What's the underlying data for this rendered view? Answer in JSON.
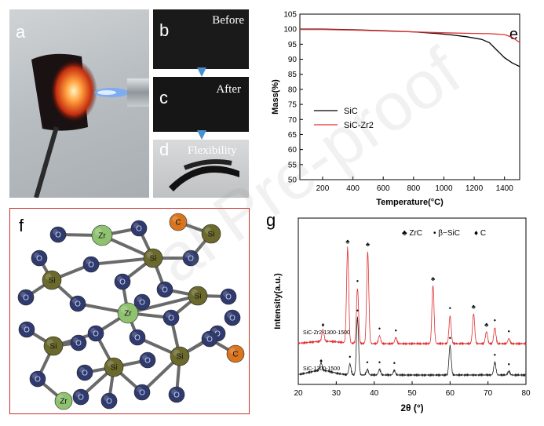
{
  "panels": {
    "a": {
      "label": "a"
    },
    "b": {
      "label": "b",
      "caption": "Before"
    },
    "c": {
      "label": "c",
      "caption": "After"
    },
    "d": {
      "label": "d",
      "caption": "Flexibility"
    },
    "e": {
      "label": "e"
    },
    "f": {
      "label": "f"
    },
    "g": {
      "label": "g"
    }
  },
  "molecule": {
    "atoms": {
      "O": "O",
      "Si": "Si",
      "Zr": "Zr",
      "C": "C"
    },
    "colors": {
      "O": "#2f3a6e",
      "Si": "#6b6a2c",
      "Zr": "#8fc26f",
      "C": "#d9741f"
    }
  },
  "watermark": "al Pre-proof",
  "chart_data": [
    {
      "type": "line",
      "panel": "e",
      "xlabel": "Temperature(°C)",
      "ylabel": "Mass(%)",
      "xlim": [
        50,
        1500
      ],
      "ylim": [
        50,
        105
      ],
      "xticks": [
        200,
        400,
        600,
        800,
        1000,
        1200,
        1400
      ],
      "yticks": [
        50,
        55,
        60,
        65,
        70,
        75,
        80,
        85,
        90,
        95,
        100,
        105
      ],
      "legend_position": "bottom-left",
      "series": [
        {
          "name": "SiC",
          "color": "#000000",
          "x": [
            50,
            200,
            400,
            600,
            800,
            950,
            1050,
            1150,
            1250,
            1300,
            1350,
            1400,
            1450,
            1500
          ],
          "y": [
            100,
            100,
            99.8,
            99.5,
            99.1,
            98.6,
            98.1,
            97.5,
            96.6,
            95.5,
            93.0,
            90.5,
            88.8,
            87.6
          ]
        },
        {
          "name": "SiC-Zr2",
          "color": "#e03030",
          "x": [
            50,
            200,
            400,
            600,
            800,
            1000,
            1200,
            1300,
            1400,
            1450,
            1500
          ],
          "y": [
            99.9,
            99.9,
            99.7,
            99.4,
            99.1,
            98.8,
            98.6,
            98.5,
            98.2,
            97.3,
            95.6
          ]
        }
      ]
    },
    {
      "type": "line",
      "panel": "g",
      "xlabel": "2θ (°)",
      "ylabel": "Intensity(a.u.)",
      "xlim": [
        20,
        80
      ],
      "xticks": [
        20,
        30,
        40,
        50,
        60,
        70,
        80
      ],
      "legend": [
        {
          "symbol": "♣",
          "label": "ZrC"
        },
        {
          "symbol": "•",
          "label": "β−SiC"
        },
        {
          "symbol": "♦",
          "label": "C"
        }
      ],
      "series": [
        {
          "name": "SiC-Zr2-1300-1500",
          "color": "#e03030",
          "peaks": [
            {
              "x": 26.5,
              "h": 0.12,
              "marker": "♦"
            },
            {
              "x": 33.0,
              "h": 0.95,
              "marker": "♣"
            },
            {
              "x": 35.6,
              "h": 0.55,
              "marker": "•"
            },
            {
              "x": 38.3,
              "h": 0.92,
              "marker": "♣"
            },
            {
              "x": 41.4,
              "h": 0.08,
              "marker": "•"
            },
            {
              "x": 45.7,
              "h": 0.06,
              "marker": "•"
            },
            {
              "x": 55.5,
              "h": 0.58,
              "marker": "♣"
            },
            {
              "x": 60.0,
              "h": 0.28,
              "marker": "•"
            },
            {
              "x": 66.2,
              "h": 0.3,
              "marker": "♣"
            },
            {
              "x": 69.6,
              "h": 0.12,
              "marker": "♣"
            },
            {
              "x": 71.8,
              "h": 0.16,
              "marker": "•"
            },
            {
              "x": 75.5,
              "h": 0.05,
              "marker": "•"
            }
          ]
        },
        {
          "name": "SiC-1300-1500",
          "color": "#222222",
          "peaks": [
            {
              "x": 26.0,
              "h": 0.08,
              "marker": "♦"
            },
            {
              "x": 33.6,
              "h": 0.12,
              "marker": "•"
            },
            {
              "x": 35.6,
              "h": 0.62,
              "marker": "•"
            },
            {
              "x": 38.2,
              "h": 0.06,
              "marker": "•"
            },
            {
              "x": 41.4,
              "h": 0.06,
              "marker": "•"
            },
            {
              "x": 45.3,
              "h": 0.05,
              "marker": "•"
            },
            {
              "x": 60.0,
              "h": 0.32,
              "marker": "•"
            },
            {
              "x": 71.8,
              "h": 0.14,
              "marker": "•"
            },
            {
              "x": 75.5,
              "h": 0.04,
              "marker": "•"
            }
          ]
        }
      ]
    }
  ]
}
